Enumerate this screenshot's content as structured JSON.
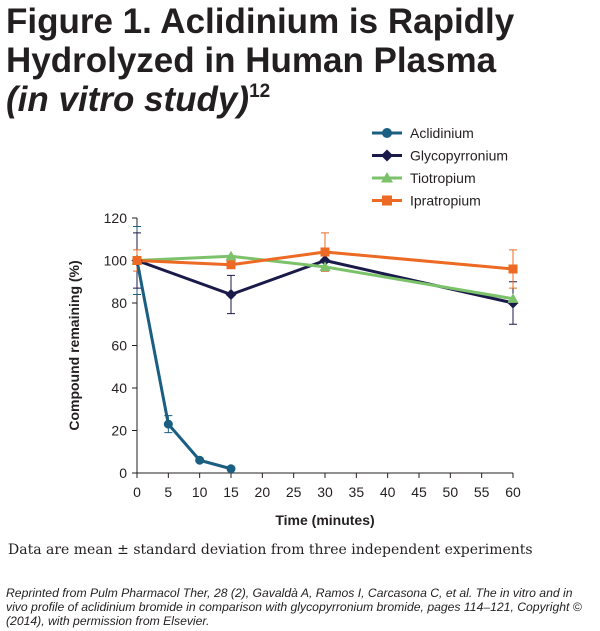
{
  "figure": {
    "title_line1": "Figure 1. Aclidinium is Rapidly",
    "title_line2": "Hydrolyzed in Human Plasma",
    "title_line3": "(in vitro study)",
    "title_superscript": "12",
    "footnote": "Data are mean ± standard deviation from three independent experiments",
    "source": "Reprinted from Pulm Pharmacol Ther, 28 (2), Gavaldà A, Ramos I, Carcasona C, et al. The in vitro and in vivo profile of aclidinium bromide in comparison with glycopyrronium bromide, pages 114–121, Copyright © (2014), with permission from Elsevier."
  },
  "chart_data": {
    "type": "line",
    "title": "Figure 1. Aclidinium is Rapidly Hydrolyzed in Human Plasma (in vitro study)",
    "xlabel": "Time (minutes)",
    "ylabel": "Compound remaining (%)",
    "xlim": [
      0,
      60
    ],
    "ylim": [
      0,
      120
    ],
    "xticks": [
      0,
      5,
      10,
      15,
      20,
      25,
      30,
      35,
      40,
      45,
      50,
      55,
      60
    ],
    "yticks": [
      0,
      20,
      40,
      60,
      80,
      100,
      120
    ],
    "grid": false,
    "legend_position": "top-right",
    "series": [
      {
        "name": "Aclidinium",
        "color": "#1a5e82",
        "marker": "circle",
        "x": [
          0,
          5,
          10,
          15
        ],
        "y": [
          100,
          23,
          6,
          2
        ],
        "err": [
          16,
          4,
          0,
          0
        ]
      },
      {
        "name": "Glycopyrronium",
        "color": "#1a1a4a",
        "marker": "diamond",
        "x": [
          0,
          15,
          30,
          60
        ],
        "y": [
          100,
          84,
          100,
          80
        ],
        "err": [
          13,
          9,
          5,
          10
        ]
      },
      {
        "name": "Tiotropium",
        "color": "#7cc26a",
        "marker": "triangle",
        "x": [
          0,
          15,
          30,
          60
        ],
        "y": [
          100,
          102,
          97,
          82
        ],
        "err": [
          0,
          0,
          0,
          0
        ]
      },
      {
        "name": "Ipratropium",
        "color": "#ec6a23",
        "marker": "square",
        "x": [
          0,
          15,
          30,
          60
        ],
        "y": [
          100,
          98,
          104,
          96
        ],
        "err": [
          5,
          0,
          9,
          9
        ]
      }
    ]
  }
}
